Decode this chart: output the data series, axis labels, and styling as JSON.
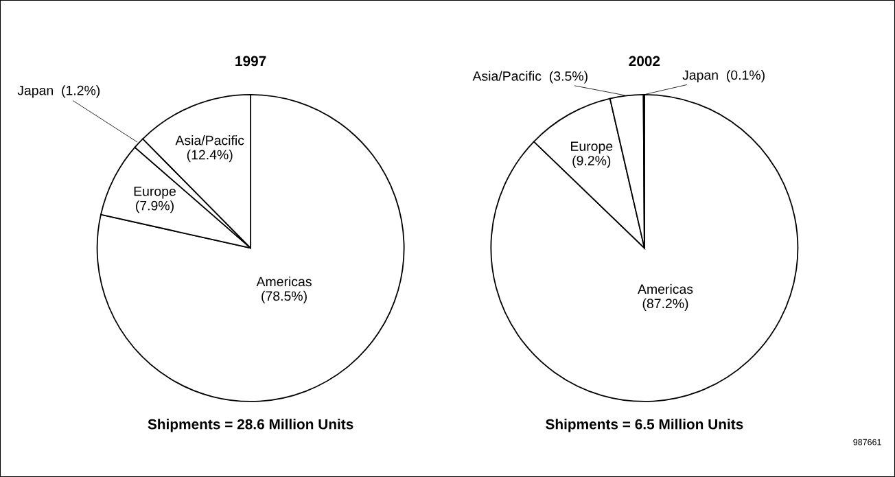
{
  "chart_data": [
    {
      "type": "pie",
      "title": "1997",
      "xlabel": "Shipments = 28.6 Million Units",
      "categories": [
        "Americas",
        "Europe",
        "Japan",
        "Asia/Pacific"
      ],
      "values": [
        78.5,
        7.9,
        1.2,
        12.4
      ],
      "value_labels": [
        "(78.5%)",
        "(7.9%)",
        "(1.2%)",
        "(12.4%)"
      ],
      "colors": [
        "#ffffff",
        "#ffffff",
        "#ffffff",
        "#ffffff"
      ],
      "legend": false
    },
    {
      "type": "pie",
      "title": "2002",
      "xlabel": "Shipments = 6.5 Million Units",
      "categories": [
        "Americas",
        "Europe",
        "Asia/Pacific",
        "Japan"
      ],
      "values": [
        87.2,
        9.2,
        3.5,
        0.1
      ],
      "value_labels": [
        "(87.2%)",
        "(9.2%)",
        "(3.5%)",
        "(0.1%)"
      ],
      "colors": [
        "#ffffff",
        "#ffffff",
        "#ffffff",
        "#ffffff"
      ],
      "legend": false,
      "annotations": [
        "987661"
      ]
    }
  ]
}
